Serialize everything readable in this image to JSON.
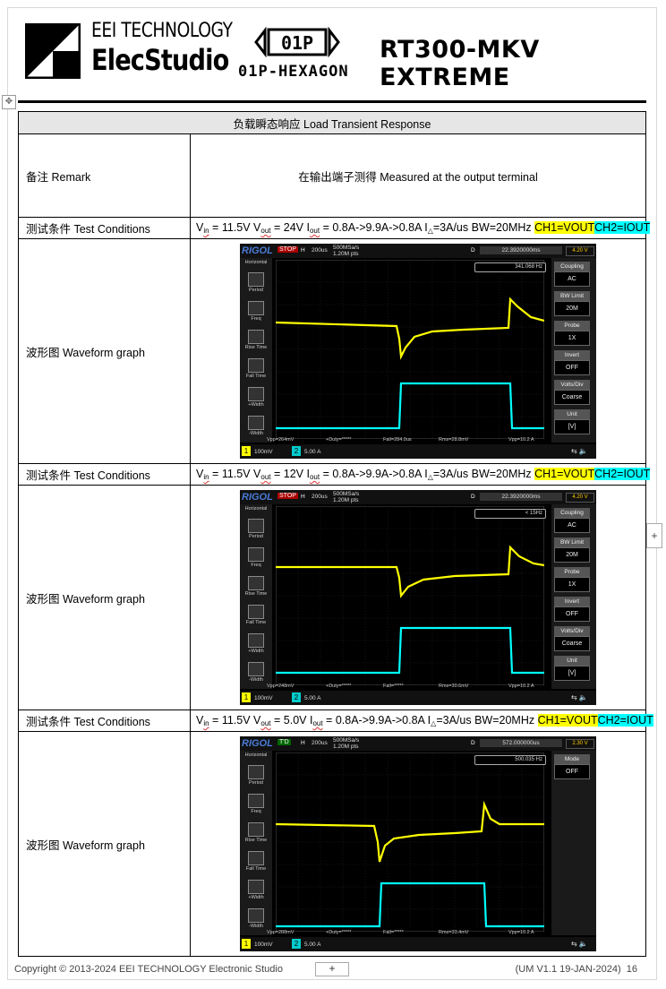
{
  "header": {
    "brand_line1": "EEI TECHNOLOGY",
    "brand_line2": "ElecStudio",
    "hex_logo_text": "01P",
    "hex_name": "01P-HEXAGON",
    "product": "RT300-MKV EXTREME"
  },
  "table": {
    "title": "负载瞬态响应 Load Transient Response",
    "remark_label": "备注 Remark",
    "remark_value": "在输出端子测得 Measured at the output terminal",
    "cond_label": "测试条件 Test Conditions",
    "wave_label": "波形图 Waveform graph",
    "rows": [
      {
        "vin": "11.5V",
        "vout": "24V",
        "iout": "0.8A->9.9A->0.8A",
        "slew": "3A/us",
        "bw": "BW=20MHz",
        "ch1": "CH1=VOUT",
        "ch2": "CH2=IOUT"
      },
      {
        "vin": "11.5V",
        "vout": "12V",
        "iout": "0.8A->9.9A->0.8A",
        "slew": "3A/us",
        "bw": "BW=20MHz",
        "ch1": "CH1=VOUT",
        "ch2": "CH2=IOUT"
      },
      {
        "vin": "11.5V",
        "vout": "5.0V",
        "iout": "0.8A->9.9A->0.8A",
        "slew": "3A/us",
        "bw": "BW=20MHz",
        "ch1": "CH1=VOUT",
        "ch2": "CH2=IOUT"
      }
    ]
  },
  "scopes": [
    {
      "brand": "RIGOL",
      "state": "STOP",
      "h": "H",
      "timebase": "200us",
      "sa": "500MSa/s",
      "pts": "1.20M pts",
      "d": "D",
      "delay": "22.3920000ms",
      "trig_level": "4.20 V",
      "freq": "341.068 Hz",
      "vpp1": "Vpp=264mV",
      "duty": "+Duty=*****",
      "fall": "Fall=284.0us",
      "rms": "Rms=28.8mV",
      "vpp2": "Vpp=10.2 A",
      "ch1": "100mV",
      "ch2": "5.00 A",
      "right": [
        {
          "h": "Coupling",
          "v": "AC"
        },
        {
          "h": "BW Limit",
          "v": "20M"
        },
        {
          "h": "Probe",
          "v": "1X"
        },
        {
          "h": "Invert",
          "v": "OFF"
        },
        {
          "h": "Volts/Div",
          "v": "Coarse"
        },
        {
          "h": "Unit",
          "v": "[V]"
        }
      ]
    },
    {
      "brand": "RIGOL",
      "state": "STOP",
      "h": "H",
      "timebase": "200us",
      "sa": "500MSa/s",
      "pts": "1.20M pts",
      "d": "D",
      "delay": "22.3920000ms",
      "trig_level": "4.20 V",
      "freq": "< 15Hz",
      "vpp1": "Vpp=248mV",
      "duty": "+Duty=*****",
      "fall": "Fall=*****",
      "rms": "Rms=30.6mV",
      "vpp2": "Vpp=10.2 A",
      "ch1": "100mV",
      "ch2": "5.00 A",
      "right": [
        {
          "h": "Coupling",
          "v": "AC"
        },
        {
          "h": "BW Limit",
          "v": "20M"
        },
        {
          "h": "Probe",
          "v": "1X"
        },
        {
          "h": "Invert",
          "v": "OFF"
        },
        {
          "h": "Volts/Div",
          "v": "Coarse"
        },
        {
          "h": "Unit",
          "v": "[V]"
        }
      ]
    },
    {
      "brand": "RIGOL",
      "state": "T'D",
      "h": "H",
      "timebase": "200us",
      "sa": "500MSa/s",
      "pts": "1.20M pts",
      "d": "D",
      "delay": "572.000000us",
      "trig_level": "2.30 V",
      "freq": "500.035 Hz",
      "vpp1": "Vpp=288mV",
      "duty": "+Duty=*****",
      "fall": "Fall=*****",
      "rms": "Rms=33.4mV",
      "vpp2": "Vpp=10.2 A",
      "ch1": "100mV",
      "ch2": "5.00 A",
      "right": [
        {
          "h": "Mode",
          "v": "OFF"
        }
      ]
    }
  ],
  "left_menu": {
    "title": "Horizontal",
    "items": [
      "Period",
      "Freq",
      "Rise Time",
      "Fall Time",
      "+Width",
      "-Width"
    ]
  },
  "side_labels": {
    "ch1": "CH1",
    "cursor": "Cursor"
  },
  "channel_numbers": {
    "one": "1",
    "two": "2"
  },
  "colors": {
    "ch1": "#ffff00",
    "ch2": "#00ffff",
    "highlight_yellow": "#ffff00",
    "highlight_cyan": "#00ffff"
  },
  "footer": {
    "copyright": "Copyright © 2013-2024 EEI TECHNOLOGY Electronic Studio",
    "version": "(UM V1.1 19-JAN-2024)",
    "page": "16",
    "plus": "+"
  }
}
